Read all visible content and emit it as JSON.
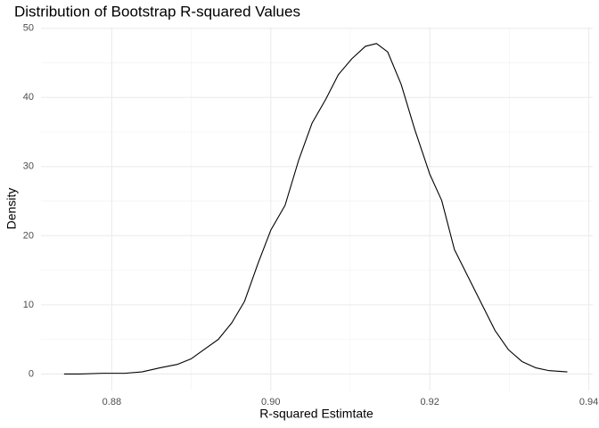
{
  "chart_data": {
    "type": "line",
    "title": "Distribution of Bootstrap R-squared Values",
    "x_label": "R-squared Estimtate",
    "y_label": "Density",
    "xlim": [
      0.8711,
      0.9405
    ],
    "ylim": [
      -2.4,
      50.1
    ],
    "xticks": [
      0.88,
      {
        "value": 0.9,
        "label": "0.90"
      },
      0.92,
      0.94
    ],
    "yticks": [
      0,
      10,
      20,
      30,
      40,
      50
    ],
    "x_minor_ticks": [
      0.89,
      0.91,
      0.93
    ],
    "y_minor_ticks": [
      5,
      15,
      25,
      35,
      45
    ],
    "grid": true,
    "color": "#000000",
    "x": [
      0.874,
      0.876,
      0.8788,
      0.8816,
      0.8838,
      0.8861,
      0.8883,
      0.89,
      0.8917,
      0.8934,
      0.8951,
      0.8967,
      0.8984,
      0.9,
      0.9018,
      0.9035,
      0.9052,
      0.9069,
      0.9085,
      0.9102,
      0.9119,
      0.9133,
      0.9147,
      0.9164,
      0.9181,
      0.92,
      0.9215,
      0.9231,
      0.9248,
      0.9265,
      0.9282,
      0.9299,
      0.9316,
      0.9333,
      0.9349,
      0.9373
    ],
    "values": [
      0,
      0,
      0.1,
      0.1,
      0.3,
      0.9,
      1.4,
      2.2,
      3.6,
      5.0,
      7.4,
      10.5,
      16,
      20.8,
      24.4,
      30.9,
      36.3,
      39.7,
      43.3,
      45.6,
      47.4,
      47.8,
      46.6,
      41.9,
      35.4,
      28.9,
      25.1,
      18.0,
      14.1,
      10.2,
      6.3,
      3.5,
      1.8,
      0.9,
      0.5,
      0.3
    ]
  }
}
